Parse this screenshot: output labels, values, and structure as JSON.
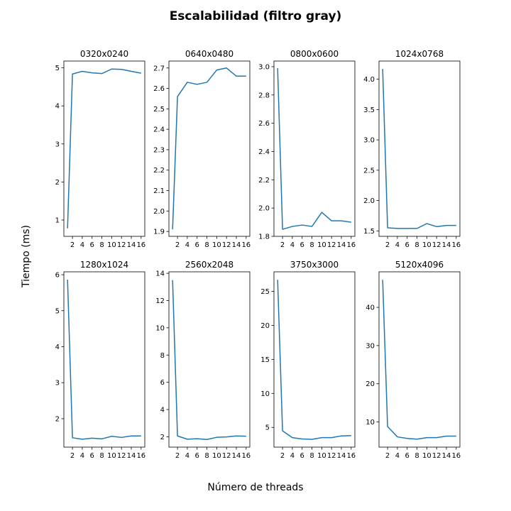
{
  "figure": {
    "title": "Escalabilidad (filtro gray)",
    "xlabel": "Número de threads",
    "ylabel": "Tiempo (ms)"
  },
  "colors": {
    "line": "#1f77b4",
    "axes": "#000000",
    "background": "#ffffff"
  },
  "chart_data": [
    {
      "type": "line",
      "title": "0320x0240",
      "x": [
        1,
        2,
        4,
        6,
        8,
        10,
        12,
        14,
        16
      ],
      "values": [
        0.78,
        4.84,
        4.91,
        4.87,
        4.85,
        4.97,
        4.96,
        4.91,
        4.86
      ],
      "xticks": [
        2,
        4,
        6,
        8,
        10,
        12,
        14,
        16
      ],
      "xlim": [
        0.25,
        16.75
      ],
      "yticks": [
        1,
        2,
        3,
        4,
        5
      ],
      "ytick_labels": [
        "1",
        "2",
        "3",
        "4",
        "5"
      ],
      "ylim": [
        0.57,
        5.18
      ],
      "grid": false,
      "legend": false
    },
    {
      "type": "line",
      "title": "0640x0480",
      "x": [
        1,
        2,
        4,
        6,
        8,
        10,
        12,
        14,
        16
      ],
      "values": [
        1.91,
        2.56,
        2.63,
        2.62,
        2.63,
        2.69,
        2.7,
        2.66,
        2.66
      ],
      "xticks": [
        2,
        4,
        6,
        8,
        10,
        12,
        14,
        16
      ],
      "xlim": [
        0.25,
        16.75
      ],
      "yticks": [
        1.9,
        2.0,
        2.1,
        2.2,
        2.3,
        2.4,
        2.5,
        2.6,
        2.7
      ],
      "ytick_labels": [
        "1.9",
        "2.0",
        "2.1",
        "2.2",
        "2.3",
        "2.4",
        "2.5",
        "2.6",
        "2.7"
      ],
      "ylim": [
        1.876,
        2.734
      ],
      "grid": false,
      "legend": false
    },
    {
      "type": "line",
      "title": "0800x0600",
      "x": [
        1,
        2,
        4,
        6,
        8,
        10,
        12,
        14,
        16
      ],
      "values": [
        2.99,
        1.85,
        1.87,
        1.88,
        1.87,
        1.97,
        1.91,
        1.91,
        1.9
      ],
      "xticks": [
        2,
        4,
        6,
        8,
        10,
        12,
        14,
        16
      ],
      "xlim": [
        0.25,
        16.75
      ],
      "yticks": [
        1.8,
        2.0,
        2.2,
        2.4,
        2.6,
        2.8,
        3.0
      ],
      "ytick_labels": [
        "1.8",
        "2.0",
        "2.2",
        "2.4",
        "2.6",
        "2.8",
        "3.0"
      ],
      "ylim": [
        1.8,
        3.04
      ],
      "grid": false,
      "legend": false
    },
    {
      "type": "line",
      "title": "1024x0768",
      "x": [
        1,
        2,
        4,
        6,
        8,
        10,
        12,
        14,
        16
      ],
      "values": [
        4.17,
        1.55,
        1.54,
        1.54,
        1.54,
        1.62,
        1.57,
        1.59,
        1.59
      ],
      "xticks": [
        2,
        4,
        6,
        8,
        10,
        12,
        14,
        16
      ],
      "xlim": [
        0.25,
        16.75
      ],
      "yticks": [
        1.5,
        2.0,
        2.5,
        3.0,
        3.5,
        4.0
      ],
      "ytick_labels": [
        "1.5",
        "2.0",
        "2.5",
        "3.0",
        "3.5",
        "4.0"
      ],
      "ylim": [
        1.41,
        4.3
      ],
      "grid": false,
      "legend": false
    },
    {
      "type": "line",
      "title": "1280x1024",
      "x": [
        1,
        2,
        4,
        6,
        8,
        10,
        12,
        14,
        16
      ],
      "values": [
        5.86,
        1.47,
        1.43,
        1.46,
        1.44,
        1.51,
        1.48,
        1.52,
        1.52
      ],
      "xticks": [
        2,
        4,
        6,
        8,
        10,
        12,
        14,
        16
      ],
      "xlim": [
        0.25,
        16.75
      ],
      "yticks": [
        2,
        3,
        4,
        5,
        6
      ],
      "ytick_labels": [
        "2",
        "3",
        "4",
        "5",
        "6"
      ],
      "ylim": [
        1.21,
        6.08
      ],
      "grid": false,
      "legend": false
    },
    {
      "type": "line",
      "title": "2560x2048",
      "x": [
        1,
        2,
        4,
        6,
        8,
        10,
        12,
        14,
        16
      ],
      "values": [
        13.5,
        2.06,
        1.82,
        1.86,
        1.8,
        1.96,
        1.99,
        2.06,
        2.04
      ],
      "xticks": [
        2,
        4,
        6,
        8,
        10,
        12,
        14,
        16
      ],
      "xlim": [
        0.25,
        16.75
      ],
      "yticks": [
        2,
        4,
        6,
        8,
        10,
        12,
        14
      ],
      "ytick_labels": [
        "2",
        "4",
        "6",
        "8",
        "10",
        "12",
        "14"
      ],
      "ylim": [
        1.24,
        14.11
      ],
      "grid": false,
      "legend": false
    },
    {
      "type": "line",
      "title": "3750x3000",
      "x": [
        1,
        2,
        4,
        6,
        8,
        10,
        12,
        14,
        16
      ],
      "values": [
        26.7,
        4.5,
        3.5,
        3.3,
        3.25,
        3.5,
        3.5,
        3.75,
        3.8
      ],
      "xticks": [
        2,
        4,
        6,
        8,
        10,
        12,
        14,
        16
      ],
      "xlim": [
        0.25,
        16.75
      ],
      "yticks": [
        5,
        10,
        15,
        20,
        25
      ],
      "ytick_labels": [
        "5",
        "10",
        "15",
        "20",
        "25"
      ],
      "ylim": [
        2.1,
        27.87
      ],
      "grid": false,
      "legend": false
    },
    {
      "type": "line",
      "title": "5120x4096",
      "x": [
        1,
        2,
        4,
        6,
        8,
        10,
        12,
        14,
        16
      ],
      "values": [
        47.2,
        8.8,
        6.1,
        5.7,
        5.5,
        5.9,
        5.9,
        6.3,
        6.3
      ],
      "xticks": [
        2,
        4,
        6,
        8,
        10,
        12,
        14,
        16
      ],
      "xlim": [
        0.25,
        16.75
      ],
      "yticks": [
        10,
        20,
        30,
        40
      ],
      "ytick_labels": [
        "10",
        "20",
        "30",
        "40"
      ],
      "ylim": [
        3.42,
        49.3
      ],
      "grid": false,
      "legend": false
    }
  ]
}
